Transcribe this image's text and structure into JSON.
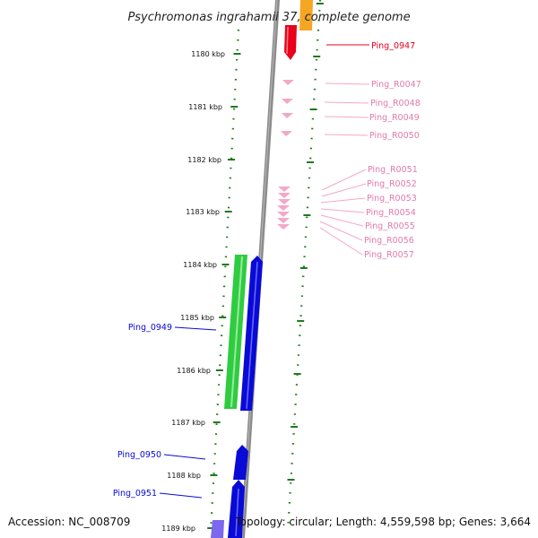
{
  "title": "Psychromonas ingrahamii 37, complete genome",
  "footer": {
    "accession": "Accession: NC_008709",
    "topology": "Topology: circular; Length: 4,559,598 bp; Genes: 3,664"
  },
  "scale": {
    "unit": "kbp",
    "ticks": [
      {
        "label": "1180 kbp"
      },
      {
        "label": "1181 kbp"
      },
      {
        "label": "1182 kbp"
      },
      {
        "label": "1183 kbp"
      },
      {
        "label": "1184 kbp"
      },
      {
        "label": "1185 kbp"
      },
      {
        "label": "1186 kbp"
      },
      {
        "label": "1187 kbp"
      },
      {
        "label": "1188 kbp"
      },
      {
        "label": "1189 kbp"
      }
    ]
  },
  "colors": {
    "backbone": "#8c8c8c",
    "ruler": "#1f7a1f",
    "protein_forward": "#e8001c",
    "rna": "#f4a7c8",
    "rna_label": "#e07aab",
    "protein_reverse": "#0a0ad6",
    "green_feature": "#2ecc40",
    "orange_feature": "#f5a623",
    "purple_feature": "#7b68ee"
  },
  "labels": {
    "ping_0947": "Ping_0947",
    "ping_r0047": "Ping_R0047",
    "ping_r0048": "Ping_R0048",
    "ping_r0049": "Ping_R0049",
    "ping_r0050": "Ping_R0050",
    "ping_r0051": "Ping_R0051",
    "ping_r0052": "Ping_R0052",
    "ping_r0053": "Ping_R0053",
    "ping_r0054": "Ping_R0054",
    "ping_r0055": "Ping_R0055",
    "ping_r0056": "Ping_R0056",
    "ping_r0057": "Ping_R0057",
    "ping_0949": "Ping_0949",
    "ping_0950": "Ping_0950",
    "ping_0951": "Ping_0951"
  }
}
